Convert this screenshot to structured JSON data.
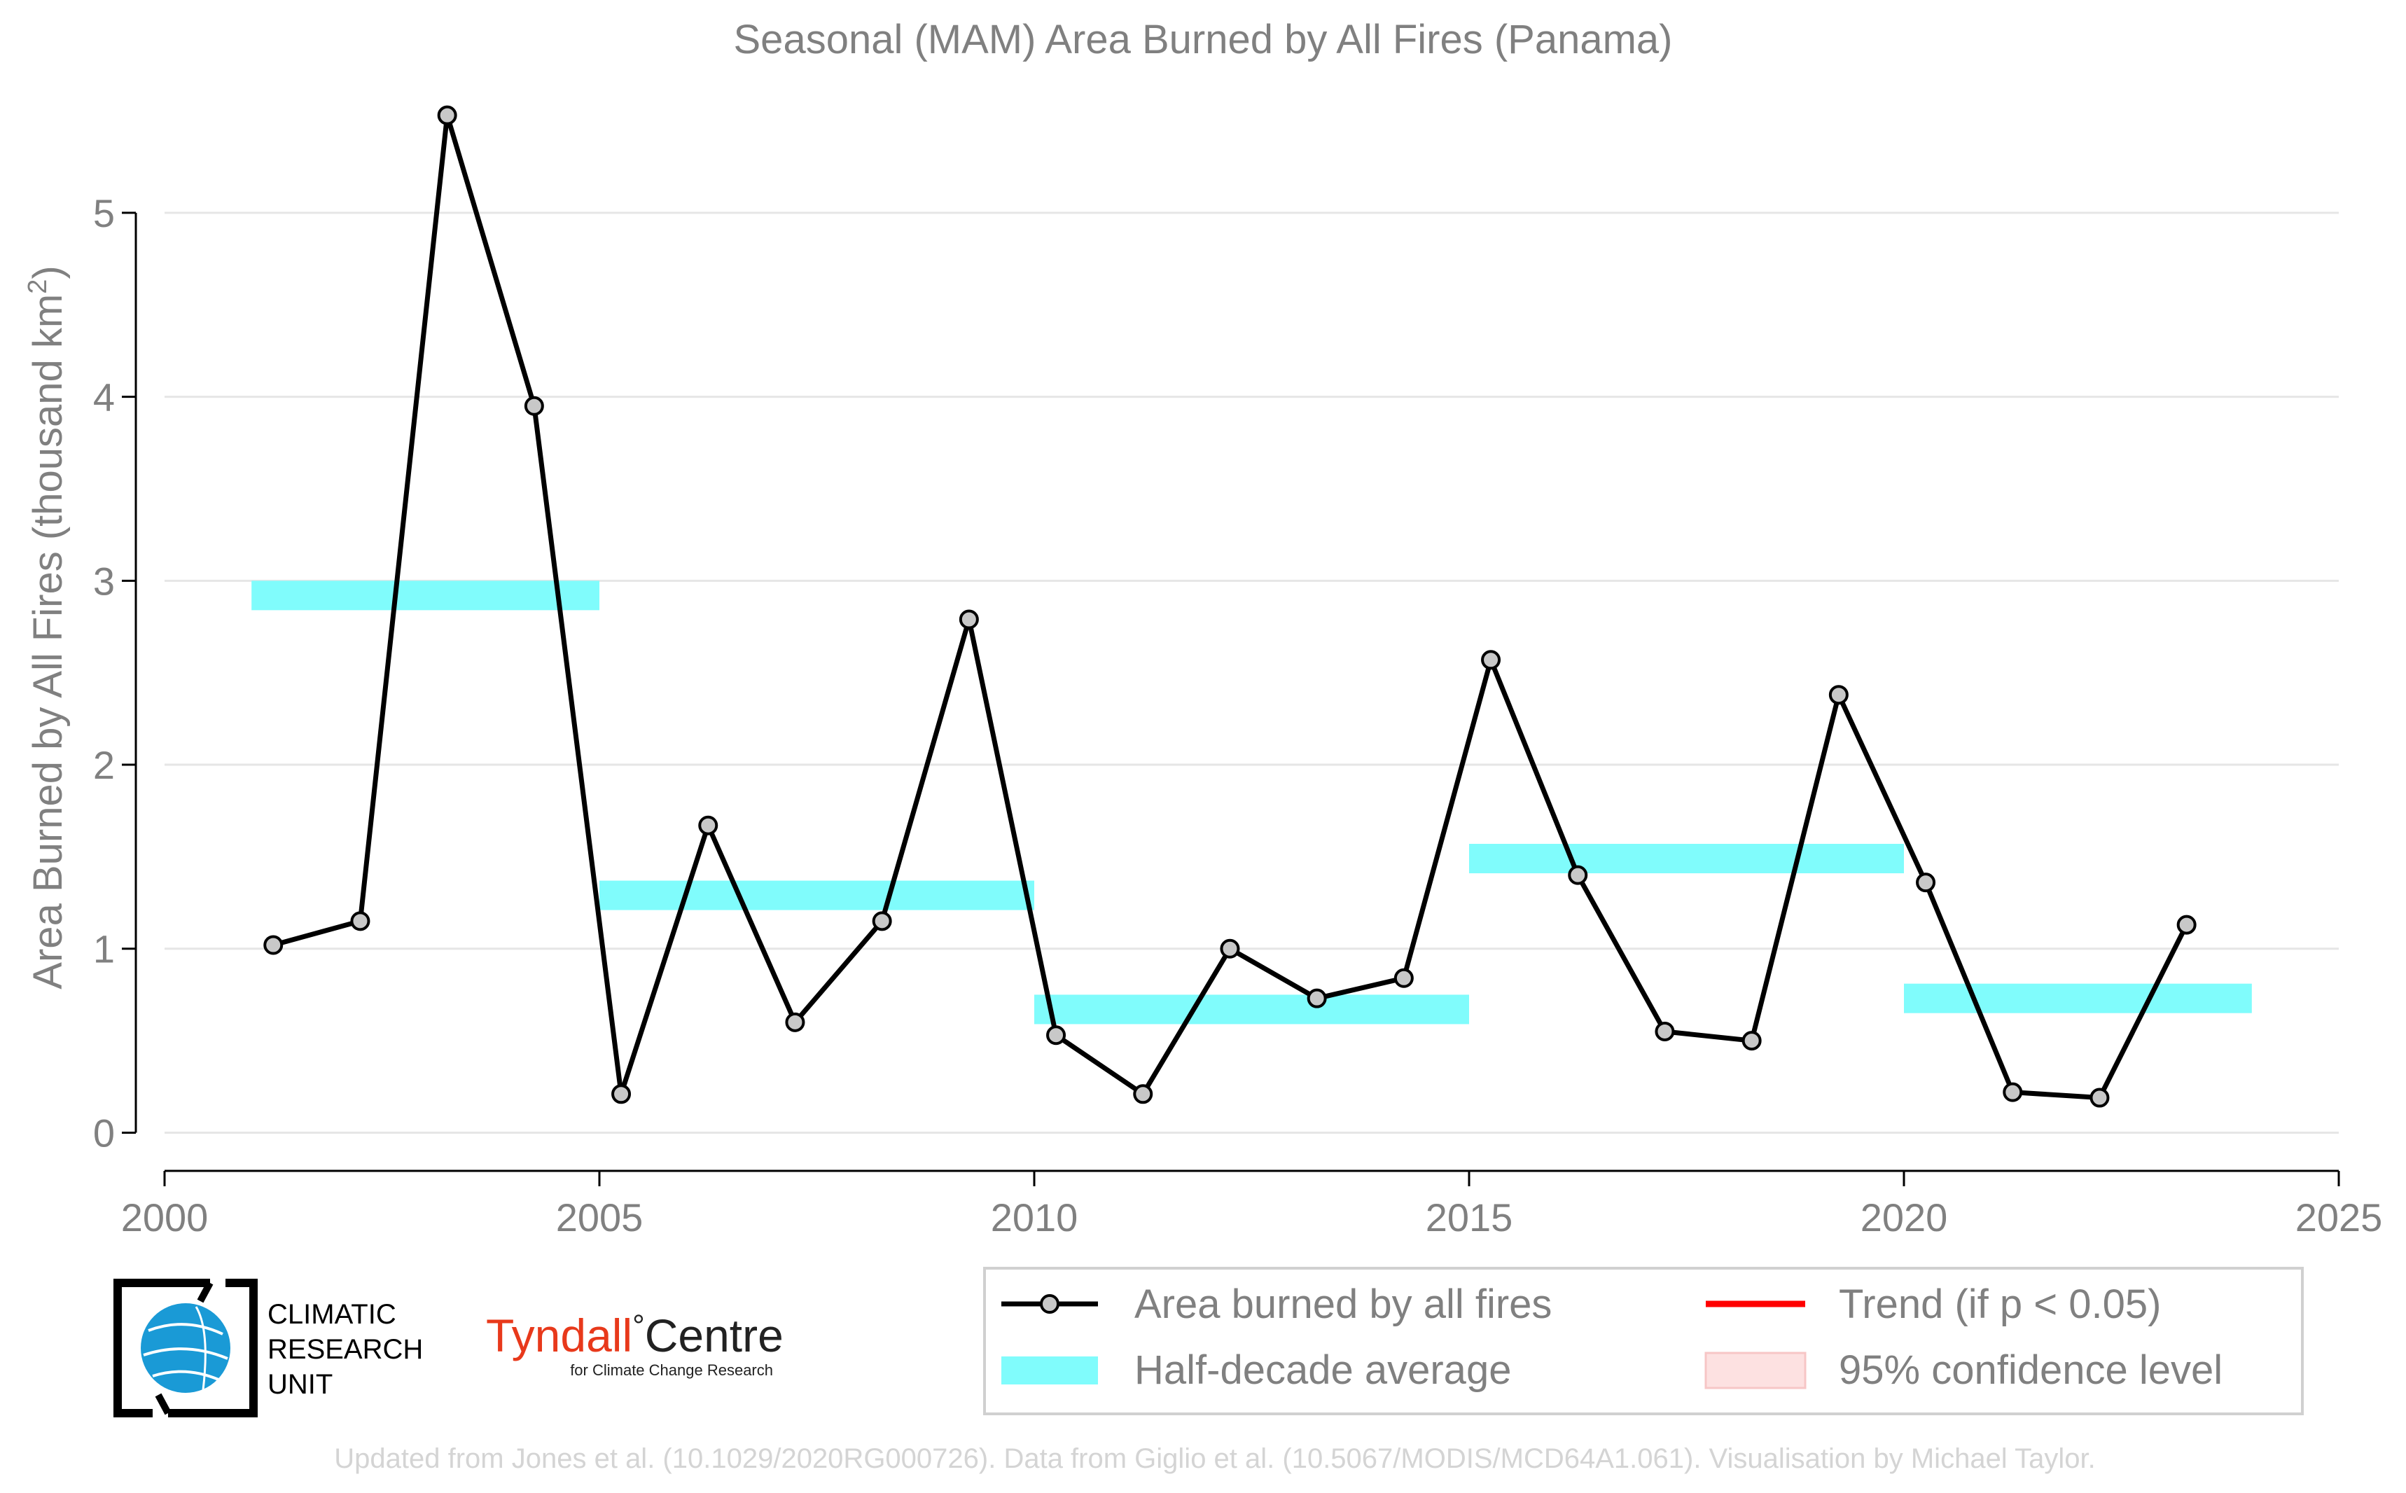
{
  "chart_data": {
    "type": "line",
    "title": "Seasonal (MAM) Area Burned by All Fires (Panama)",
    "ylabel_main": "Area Burned by All Fires (thousand km",
    "ylabel_sup": "2",
    "ylabel_end": ")",
    "xlabel": "",
    "xlim": [
      2000,
      2025
    ],
    "ylim": [
      -0.2,
      5.7
    ],
    "xticks": [
      2000,
      2005,
      2010,
      2015,
      2020,
      2025
    ],
    "yticks": [
      0,
      1,
      2,
      3,
      4,
      5
    ],
    "grid": true,
    "colors": {
      "line": "#000000",
      "marker_fill": "#c8c8c8",
      "half_decade": "#80fcfc",
      "trend": "#ff0000",
      "confidence": "#fde1e1",
      "grid": "#e6e6e6",
      "axis": "#000000"
    },
    "series": [
      {
        "name": "Area burned by all fires",
        "x": [
          2001.25,
          2002.25,
          2003.25,
          2004.25,
          2005.25,
          2006.25,
          2007.25,
          2008.25,
          2009.25,
          2010.25,
          2011.25,
          2012.25,
          2013.25,
          2014.25,
          2015.25,
          2016.25,
          2017.25,
          2018.25,
          2019.25,
          2020.25,
          2021.25,
          2022.25,
          2023.25
        ],
        "values": [
          1.02,
          1.15,
          5.53,
          3.95,
          0.21,
          1.67,
          0.6,
          1.15,
          2.79,
          0.53,
          0.21,
          1.0,
          0.73,
          0.84,
          2.57,
          1.4,
          0.55,
          0.5,
          2.38,
          1.36,
          0.22,
          0.19,
          1.13
        ]
      }
    ],
    "half_decade_averages": [
      {
        "start": 2001,
        "end": 2005,
        "value": 2.92
      },
      {
        "start": 2005,
        "end": 2010,
        "value": 1.29
      },
      {
        "start": 2010,
        "end": 2015,
        "value": 0.67
      },
      {
        "start": 2015,
        "end": 2020,
        "value": 1.49
      },
      {
        "start": 2020,
        "end": 2024,
        "value": 0.73
      }
    ],
    "legend": {
      "placement": "bottom-right",
      "items": [
        {
          "label": "Area burned by all fires",
          "kind": "line-marker"
        },
        {
          "label": "Trend (if p < 0.05)",
          "kind": "trend"
        },
        {
          "label": "Half-decade average",
          "kind": "band"
        },
        {
          "label": "95% confidence level",
          "kind": "confidence"
        }
      ]
    }
  },
  "logos": {
    "cru_line1": "CLIMATIC",
    "cru_line2": "RESEARCH",
    "cru_line3": "UNIT",
    "tyndall_word": "Tyndall",
    "tyndall_degree": "°",
    "tyndall_centre": "Centre",
    "tyndall_sub": "for Climate Change Research"
  },
  "footer": "Updated from Jones et al. (10.1029/2020RG000726). Data from Giglio et al. (10.5067/MODIS/MCD64A1.061). Visualisation by Michael Taylor."
}
